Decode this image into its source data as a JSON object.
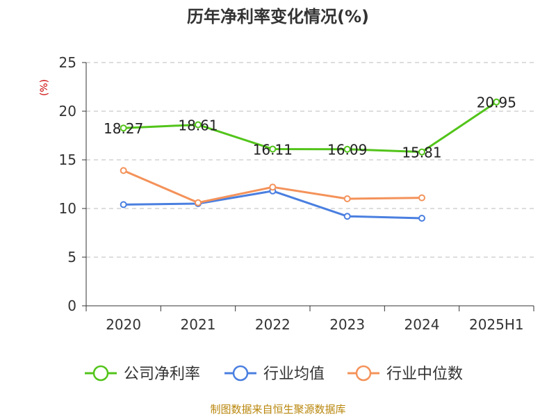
{
  "chart_data": {
    "type": "line",
    "title": "历年净利率变化情况(%)",
    "ylabel": "(%)",
    "xlabel": "",
    "categories": [
      "2020",
      "2021",
      "2022",
      "2023",
      "2024",
      "2025H1"
    ],
    "ylim": [
      0,
      25
    ],
    "yticks": [
      0,
      5,
      10,
      15,
      20,
      25
    ],
    "grid": true,
    "legend_position": "bottom",
    "series": [
      {
        "name": "公司净利率",
        "color": "#52c41a",
        "values": [
          18.27,
          18.61,
          16.11,
          16.09,
          15.81,
          20.95
        ],
        "labels": [
          "18.27",
          "18.61",
          "16.11",
          "16.09",
          "15.81",
          "20.95"
        ]
      },
      {
        "name": "行业均值",
        "color": "#4a7fe0",
        "values": [
          10.4,
          10.5,
          11.8,
          9.2,
          9.0,
          null
        ]
      },
      {
        "name": "行业中位数",
        "color": "#f4925a",
        "values": [
          13.9,
          10.6,
          12.2,
          11.0,
          11.1,
          null
        ]
      }
    ],
    "source": "制图数据来自恒生聚源数据库"
  }
}
